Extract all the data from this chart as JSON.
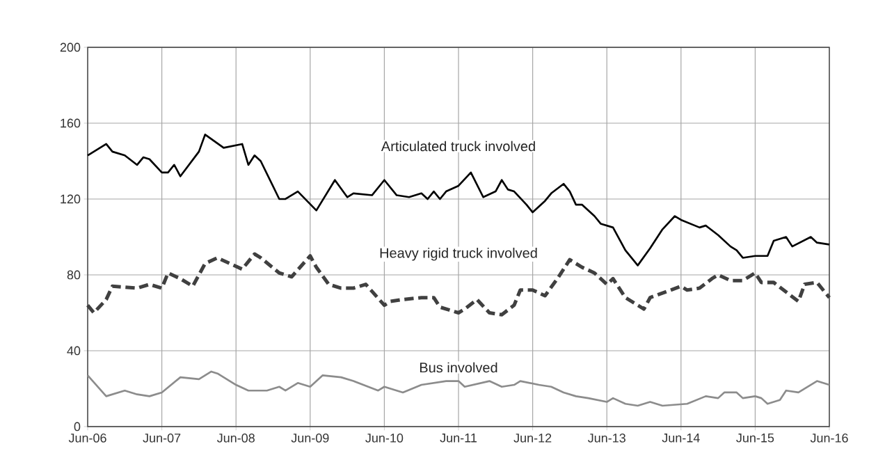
{
  "chart_data": {
    "type": "line",
    "xlim": [
      "2006-06",
      "2016-06"
    ],
    "xticks": [
      {
        "value": "2006-06",
        "label": "Jun-06"
      },
      {
        "value": "2007-06",
        "label": "Jun-07"
      },
      {
        "value": "2008-06",
        "label": "Jun-08"
      },
      {
        "value": "2009-06",
        "label": "Jun-09"
      },
      {
        "value": "2010-06",
        "label": "Jun-10"
      },
      {
        "value": "2011-06",
        "label": "Jun-11"
      },
      {
        "value": "2012-06",
        "label": "Jun-12"
      },
      {
        "value": "2013-06",
        "label": "Jun-13"
      },
      {
        "value": "2014-06",
        "label": "Jun-14"
      },
      {
        "value": "2015-06",
        "label": "Jun-15"
      },
      {
        "value": "2016-06",
        "label": "Jun-16"
      }
    ],
    "ylim": [
      0,
      200
    ],
    "yticks": [
      0,
      40,
      80,
      120,
      160,
      200
    ],
    "grid": true,
    "legend": false,
    "marker": "none",
    "series": [
      {
        "name": "Articulated truck involved",
        "color": "#000000",
        "line_style": "solid",
        "x": [
          "2006-06",
          "2006-09",
          "2006-10",
          "2006-12",
          "2007-02",
          "2007-03",
          "2007-04",
          "2007-06",
          "2007-07",
          "2007-08",
          "2007-09",
          "2007-12",
          "2008-01",
          "2008-04",
          "2008-07",
          "2008-08",
          "2008-09",
          "2008-10",
          "2009-01",
          "2009-02",
          "2009-04",
          "2009-07",
          "2009-10",
          "2009-12",
          "2010-01",
          "2010-04",
          "2010-06",
          "2010-08",
          "2010-10",
          "2010-12",
          "2011-01",
          "2011-02",
          "2011-03",
          "2011-04",
          "2011-06",
          "2011-08",
          "2011-10",
          "2011-12",
          "2012-01",
          "2012-02",
          "2012-03",
          "2012-05",
          "2012-06",
          "2012-08",
          "2012-09",
          "2012-11",
          "2012-12",
          "2013-01",
          "2013-02",
          "2013-04",
          "2013-05",
          "2013-07",
          "2013-09",
          "2013-11",
          "2014-01",
          "2014-03",
          "2014-05",
          "2014-06",
          "2014-09",
          "2014-10",
          "2014-12",
          "2015-02",
          "2015-03",
          "2015-04",
          "2015-06",
          "2015-08",
          "2015-09",
          "2015-11",
          "2015-12",
          "2016-03",
          "2016-04",
          "2016-06"
        ],
        "values": [
          143,
          149,
          145,
          143,
          138,
          142,
          141,
          134,
          134,
          138,
          132,
          145,
          154,
          147,
          149,
          138,
          143,
          140,
          120,
          120,
          124,
          114,
          130,
          121,
          123,
          122,
          130,
          122,
          121,
          123,
          120,
          124,
          120,
          124,
          127,
          134,
          121,
          124,
          130,
          125,
          124,
          117,
          113,
          119,
          123,
          128,
          124,
          117,
          117,
          111,
          107,
          105,
          93,
          85,
          94,
          104,
          111,
          109,
          105,
          106,
          101,
          95,
          93,
          89,
          90,
          90,
          98,
          100,
          95,
          100,
          97,
          96
        ]
      },
      {
        "name": "Heavy rigid truck involved",
        "color": "#404040",
        "line_style": "dashed",
        "x": [
          "2006-06",
          "2006-07",
          "2006-09",
          "2006-10",
          "2007-02",
          "2007-04",
          "2007-06",
          "2007-07",
          "2007-09",
          "2007-11",
          "2008-01",
          "2008-03",
          "2008-07",
          "2008-09",
          "2008-10",
          "2009-01",
          "2009-03",
          "2009-06",
          "2009-07",
          "2009-09",
          "2009-11",
          "2010-01",
          "2010-03",
          "2010-06",
          "2010-07",
          "2010-09",
          "2010-12",
          "2011-02",
          "2011-03",
          "2011-06",
          "2011-07",
          "2011-09",
          "2011-11",
          "2012-01",
          "2012-03",
          "2012-04",
          "2012-06",
          "2012-08",
          "2012-10",
          "2012-12",
          "2013-02",
          "2013-04",
          "2013-06",
          "2013-07",
          "2013-09",
          "2013-12",
          "2014-01",
          "2014-06",
          "2014-07",
          "2014-09",
          "2014-11",
          "2014-12",
          "2015-02",
          "2015-04",
          "2015-06",
          "2015-07",
          "2015-09",
          "2015-11",
          "2016-01",
          "2016-02",
          "2016-04",
          "2016-06"
        ],
        "values": [
          64,
          60,
          67,
          74,
          73,
          75,
          73,
          81,
          78,
          74,
          86,
          89,
          83,
          91,
          89,
          81,
          79,
          90,
          84,
          75,
          73,
          73,
          75,
          64,
          66,
          67,
          68,
          68,
          63,
          60,
          62,
          67,
          60,
          59,
          64,
          72,
          72,
          69,
          78,
          88,
          84,
          81,
          75,
          78,
          68,
          62,
          68,
          74,
          72,
          73,
          78,
          80,
          77,
          77,
          81,
          76,
          76,
          71,
          66,
          75,
          76,
          68
        ]
      },
      {
        "name": "Bus involved",
        "color": "#8c8c8c",
        "line_style": "solid",
        "x": [
          "2006-06",
          "2006-09",
          "2006-12",
          "2007-02",
          "2007-04",
          "2007-06",
          "2007-09",
          "2007-12",
          "2008-02",
          "2008-03",
          "2008-06",
          "2008-08",
          "2008-11",
          "2009-01",
          "2009-02",
          "2009-04",
          "2009-06",
          "2009-08",
          "2009-11",
          "2010-01",
          "2010-05",
          "2010-06",
          "2010-09",
          "2010-12",
          "2011-04",
          "2011-06",
          "2011-07",
          "2011-11",
          "2012-01",
          "2012-03",
          "2012-04",
          "2012-07",
          "2012-09",
          "2012-11",
          "2013-01",
          "2013-03",
          "2013-06",
          "2013-07",
          "2013-09",
          "2013-11",
          "2014-01",
          "2014-03",
          "2014-07",
          "2014-10",
          "2014-12",
          "2015-01",
          "2015-03",
          "2015-04",
          "2015-06",
          "2015-07",
          "2015-08",
          "2015-10",
          "2015-11",
          "2016-01",
          "2016-04",
          "2016-06"
        ],
        "values": [
          27,
          16,
          19,
          17,
          16,
          18,
          26,
          25,
          29,
          28,
          22,
          19,
          19,
          21,
          19,
          23,
          21,
          27,
          26,
          24,
          19,
          21,
          18,
          22,
          24,
          24,
          21,
          24,
          21,
          22,
          24,
          22,
          21,
          18,
          16,
          15,
          13,
          15,
          12,
          11,
          13,
          11,
          12,
          16,
          15,
          18,
          18,
          15,
          16,
          15,
          12,
          14,
          19,
          18,
          24,
          22
        ]
      }
    ]
  }
}
